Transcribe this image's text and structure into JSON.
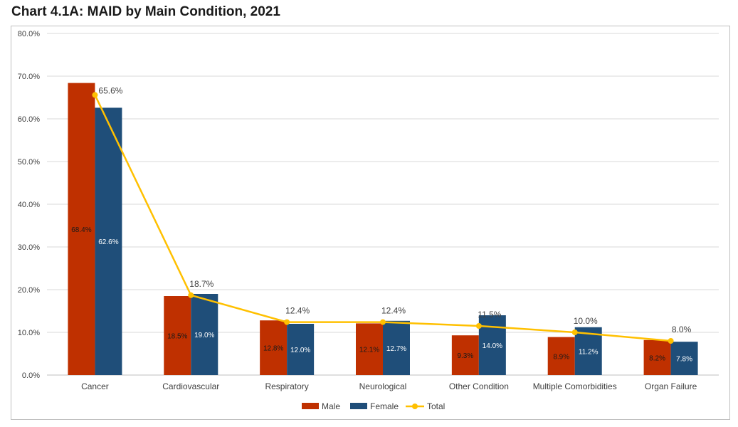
{
  "title": "Chart 4.1A: MAID by Main Condition, 2021",
  "chart_data": {
    "type": "bar",
    "categories": [
      "Cancer",
      "Cardiovascular",
      "Respiratory",
      "Neurological",
      "Other Condition",
      "Multiple Comorbidities",
      "Organ Failure"
    ],
    "series": [
      {
        "name": "Male",
        "type": "bar",
        "color": "#BF3000",
        "values": [
          68.4,
          18.5,
          12.8,
          12.1,
          9.3,
          8.9,
          8.2
        ],
        "labels": [
          "68.4%",
          "18.5%",
          "12.8%",
          "12.1%",
          "9.3%",
          "8.9%",
          "8.2%"
        ],
        "label_color": "#1a1a1a"
      },
      {
        "name": "Female",
        "type": "bar",
        "color": "#1F4E79",
        "values": [
          62.6,
          19.0,
          12.0,
          12.7,
          14.0,
          11.2,
          7.8
        ],
        "labels": [
          "62.6%",
          "19.0%",
          "12.0%",
          "12.7%",
          "14.0%",
          "11.2%",
          "7.8%"
        ],
        "label_color": "#ffffff"
      },
      {
        "name": "Total",
        "type": "line",
        "color": "#FFC000",
        "values": [
          65.6,
          18.7,
          12.4,
          12.4,
          11.5,
          10.0,
          8.0
        ],
        "labels": [
          "65.6%",
          "18.7%",
          "12.4%",
          "12.4%",
          "11.5%",
          "10.0%",
          "8.0%"
        ]
      }
    ],
    "ylim": [
      0,
      80
    ],
    "yticks": [
      "0.0%",
      "10.0%",
      "20.0%",
      "30.0%",
      "40.0%",
      "50.0%",
      "60.0%",
      "70.0%",
      "80.0%"
    ],
    "grid": true,
    "legend": "bottom"
  }
}
